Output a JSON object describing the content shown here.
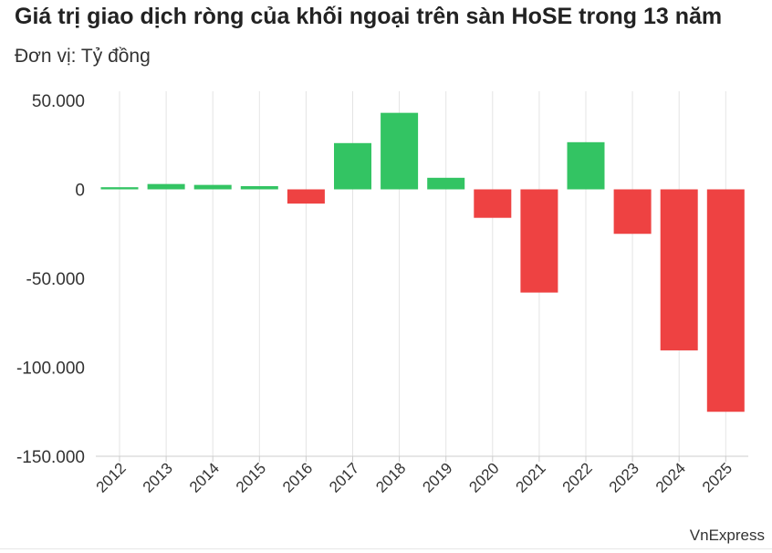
{
  "title": "Giá trị giao dịch ròng của khối ngoại trên sàn HoSE trong 13 năm",
  "subtitle": "Đơn vị: Tỷ đồng",
  "source": "VnExpress",
  "colors": {
    "positive": "#33c463",
    "negative": "#ee4242",
    "grid": "#e4e4e4",
    "axis": "#cccccc",
    "text": "#333333"
  },
  "chart_data": {
    "type": "bar",
    "title": "Giá trị giao dịch ròng của khối ngoại trên sàn HoSE trong 13 năm",
    "subtitle": "Đơn vị: Tỷ đồng",
    "xlabel": "",
    "ylabel": "",
    "categories": [
      "2012",
      "2013",
      "2014",
      "2015",
      "2016",
      "2017",
      "2018",
      "2019",
      "2020",
      "2021",
      "2022",
      "2023",
      "2024",
      "2025"
    ],
    "values": [
      1200,
      3000,
      2500,
      1800,
      -8000,
      26000,
      43000,
      6500,
      -16000,
      -58000,
      26500,
      -25000,
      -90500,
      -125000
    ],
    "ylim": [
      -150000,
      50000
    ],
    "yticks": [
      50000,
      0,
      -50000,
      -100000,
      -150000
    ],
    "ytick_labels": [
      "50.000",
      "0",
      "-50.000",
      "-100.000",
      "-150.000"
    ],
    "grid": "vertical",
    "legend": "none"
  }
}
